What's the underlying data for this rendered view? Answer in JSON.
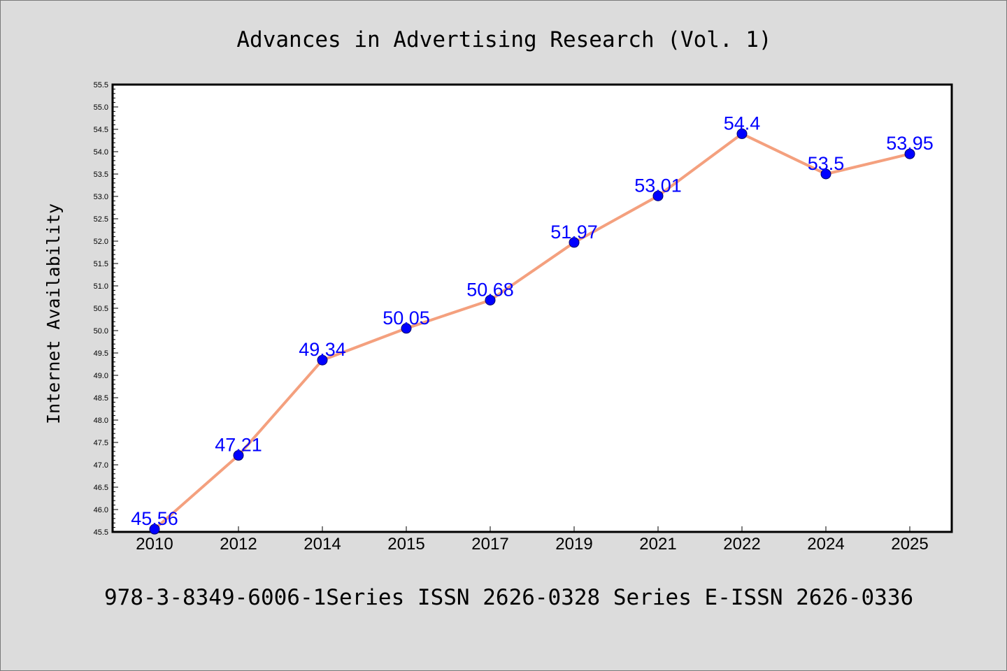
{
  "footer": "978-3-8349-6006-1Series ISSN 2626-0328 Series E-ISSN 2626-0336",
  "colors": {
    "background": "#dcdcdc",
    "plot_background": "#ffffff",
    "line": "#f4a07e",
    "marker": "#0000ff",
    "data_label": "#0000ff"
  },
  "chart_data": {
    "type": "line",
    "title": "Advances in Advertising Research (Vol. 1)",
    "xlabel": "",
    "ylabel": "Internet Availability",
    "categories": [
      "2010",
      "2012",
      "2014",
      "2015",
      "2017",
      "2019",
      "2021",
      "2022",
      "2024",
      "2025"
    ],
    "series": [
      {
        "values": [
          45.56,
          47.21,
          49.34,
          50.05,
          50.68,
          51.97,
          53.01,
          54.4,
          53.5,
          53.95
        ],
        "labels": [
          "45.56",
          "47.21",
          "49.34",
          "50.05",
          "50.68",
          "51.97",
          "53.01",
          "54.4",
          "53.5",
          "53.95"
        ]
      }
    ],
    "ylim": [
      45.5,
      55.5
    ],
    "yticks": [
      "45.5",
      "46.0",
      "46.5",
      "47.0",
      "47.5",
      "48.0",
      "48.5",
      "49.0",
      "49.5",
      "50.0",
      "50.5",
      "51.0",
      "51.5",
      "52.0",
      "52.5",
      "53.0",
      "53.5",
      "54.0",
      "54.5",
      "55.0",
      "55.5"
    ],
    "grid": false,
    "legend": "none"
  }
}
